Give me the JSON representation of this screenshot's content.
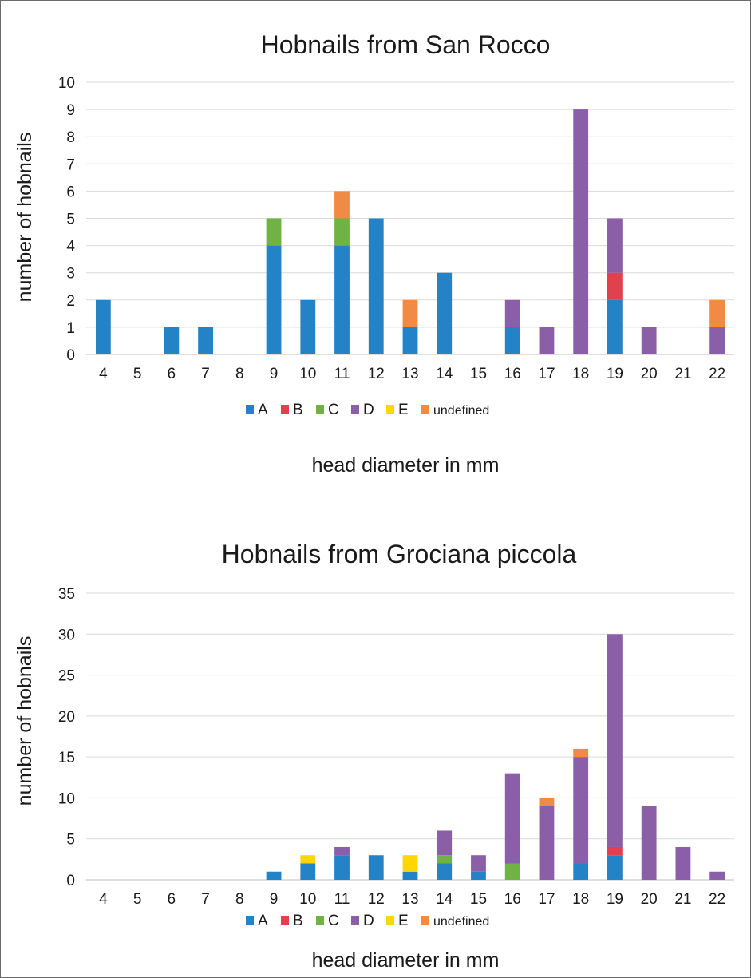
{
  "colors": {
    "A": "#2383c6",
    "B": "#e2404c",
    "C": "#70b344",
    "D": "#8a5fa8",
    "E": "#ffd600",
    "undefined": "#f18a45",
    "grid": "#d9d9d9",
    "axis": "#bfbfbf"
  },
  "chart_data": [
    {
      "type": "bar",
      "stacked": true,
      "title": "Hobnails from San Rocco",
      "xlabel": "head diameter in mm",
      "ylabel": "number of hobnails",
      "ylim": [
        0,
        10
      ],
      "yticks": [
        "0",
        "1",
        "2",
        "3",
        "4",
        "5",
        "6",
        "7",
        "8",
        "9",
        "10"
      ],
      "grid": true,
      "legend_position": "bottom",
      "categories": [
        "4",
        "5",
        "6",
        "7",
        "8",
        "9",
        "10",
        "11",
        "12",
        "13",
        "14",
        "15",
        "16",
        "17",
        "18",
        "19",
        "20",
        "21",
        "22"
      ],
      "series": [
        {
          "name": "A",
          "values": [
            2,
            0,
            1,
            1,
            0,
            4,
            2,
            4,
            5,
            1,
            3,
            0,
            1,
            0,
            0,
            2,
            0,
            0,
            0
          ]
        },
        {
          "name": "B",
          "values": [
            0,
            0,
            0,
            0,
            0,
            0,
            0,
            0,
            0,
            0,
            0,
            0,
            0,
            0,
            0,
            1,
            0,
            0,
            0
          ]
        },
        {
          "name": "C",
          "values": [
            0,
            0,
            0,
            0,
            0,
            1,
            0,
            1,
            0,
            0,
            0,
            0,
            0,
            0,
            0,
            0,
            0,
            0,
            0
          ]
        },
        {
          "name": "D",
          "values": [
            0,
            0,
            0,
            0,
            0,
            0,
            0,
            0,
            0,
            0,
            0,
            0,
            1,
            1,
            9,
            2,
            1,
            0,
            1
          ]
        },
        {
          "name": "E",
          "values": [
            0,
            0,
            0,
            0,
            0,
            0,
            0,
            0,
            0,
            0,
            0,
            0,
            0,
            0,
            0,
            0,
            0,
            0,
            0
          ]
        },
        {
          "name": "undefined",
          "values": [
            0,
            0,
            0,
            0,
            0,
            0,
            0,
            1,
            0,
            1,
            0,
            0,
            0,
            0,
            0,
            0,
            0,
            0,
            1
          ]
        }
      ]
    },
    {
      "type": "bar",
      "stacked": true,
      "title": "Hobnails from Grociana piccola",
      "xlabel": "head diameter in mm",
      "ylabel": "number of hobnails",
      "ylim": [
        0,
        35
      ],
      "yticks": [
        "0",
        "5",
        "10",
        "15",
        "20",
        "25",
        "30",
        "35"
      ],
      "grid": true,
      "legend_position": "bottom",
      "categories": [
        "4",
        "5",
        "6",
        "7",
        "8",
        "9",
        "10",
        "11",
        "12",
        "13",
        "14",
        "15",
        "16",
        "17",
        "18",
        "19",
        "20",
        "21",
        "22"
      ],
      "series": [
        {
          "name": "A",
          "values": [
            0,
            0,
            0,
            0,
            0,
            1,
            2,
            3,
            3,
            1,
            2,
            1,
            0,
            0,
            2,
            3,
            0,
            0,
            0
          ]
        },
        {
          "name": "B",
          "values": [
            0,
            0,
            0,
            0,
            0,
            0,
            0,
            0,
            0,
            0,
            0,
            0,
            0,
            0,
            0,
            1,
            0,
            0,
            0
          ]
        },
        {
          "name": "C",
          "values": [
            0,
            0,
            0,
            0,
            0,
            0,
            0,
            0,
            0,
            0,
            1,
            0,
            2,
            0,
            0,
            0,
            0,
            0,
            0
          ]
        },
        {
          "name": "D",
          "values": [
            0,
            0,
            0,
            0,
            0,
            0,
            0,
            1,
            0,
            0,
            3,
            2,
            11,
            9,
            13,
            26,
            9,
            4,
            1
          ]
        },
        {
          "name": "E",
          "values": [
            0,
            0,
            0,
            0,
            0,
            0,
            1,
            0,
            0,
            2,
            0,
            0,
            0,
            0,
            0,
            0,
            0,
            0,
            0
          ]
        },
        {
          "name": "undefined",
          "values": [
            0,
            0,
            0,
            0,
            0,
            0,
            0,
            0,
            0,
            0,
            0,
            0,
            0,
            1,
            1,
            0,
            0,
            0,
            0
          ]
        }
      ]
    }
  ]
}
